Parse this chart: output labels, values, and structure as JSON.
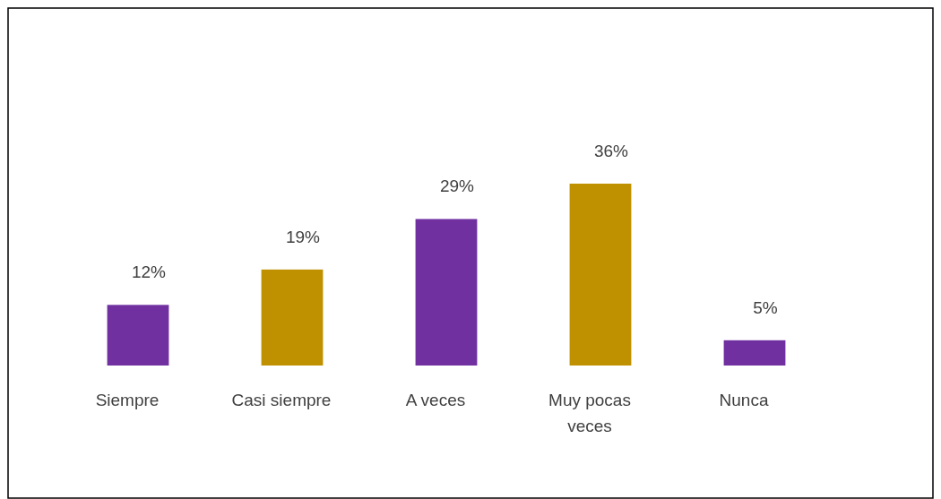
{
  "chart_data": {
    "type": "bar",
    "categories": [
      "Siempre",
      "Casi siempre",
      "A veces",
      "Muy pocas veces",
      "Nunca"
    ],
    "values": [
      12,
      19,
      29,
      36,
      5
    ],
    "colors": [
      "#7030a0",
      "#bf9000",
      "#7030a0",
      "#bf9000",
      "#7030a0"
    ],
    "value_labels": [
      "12%",
      "19%",
      "29%",
      "36%",
      "5%"
    ]
  }
}
